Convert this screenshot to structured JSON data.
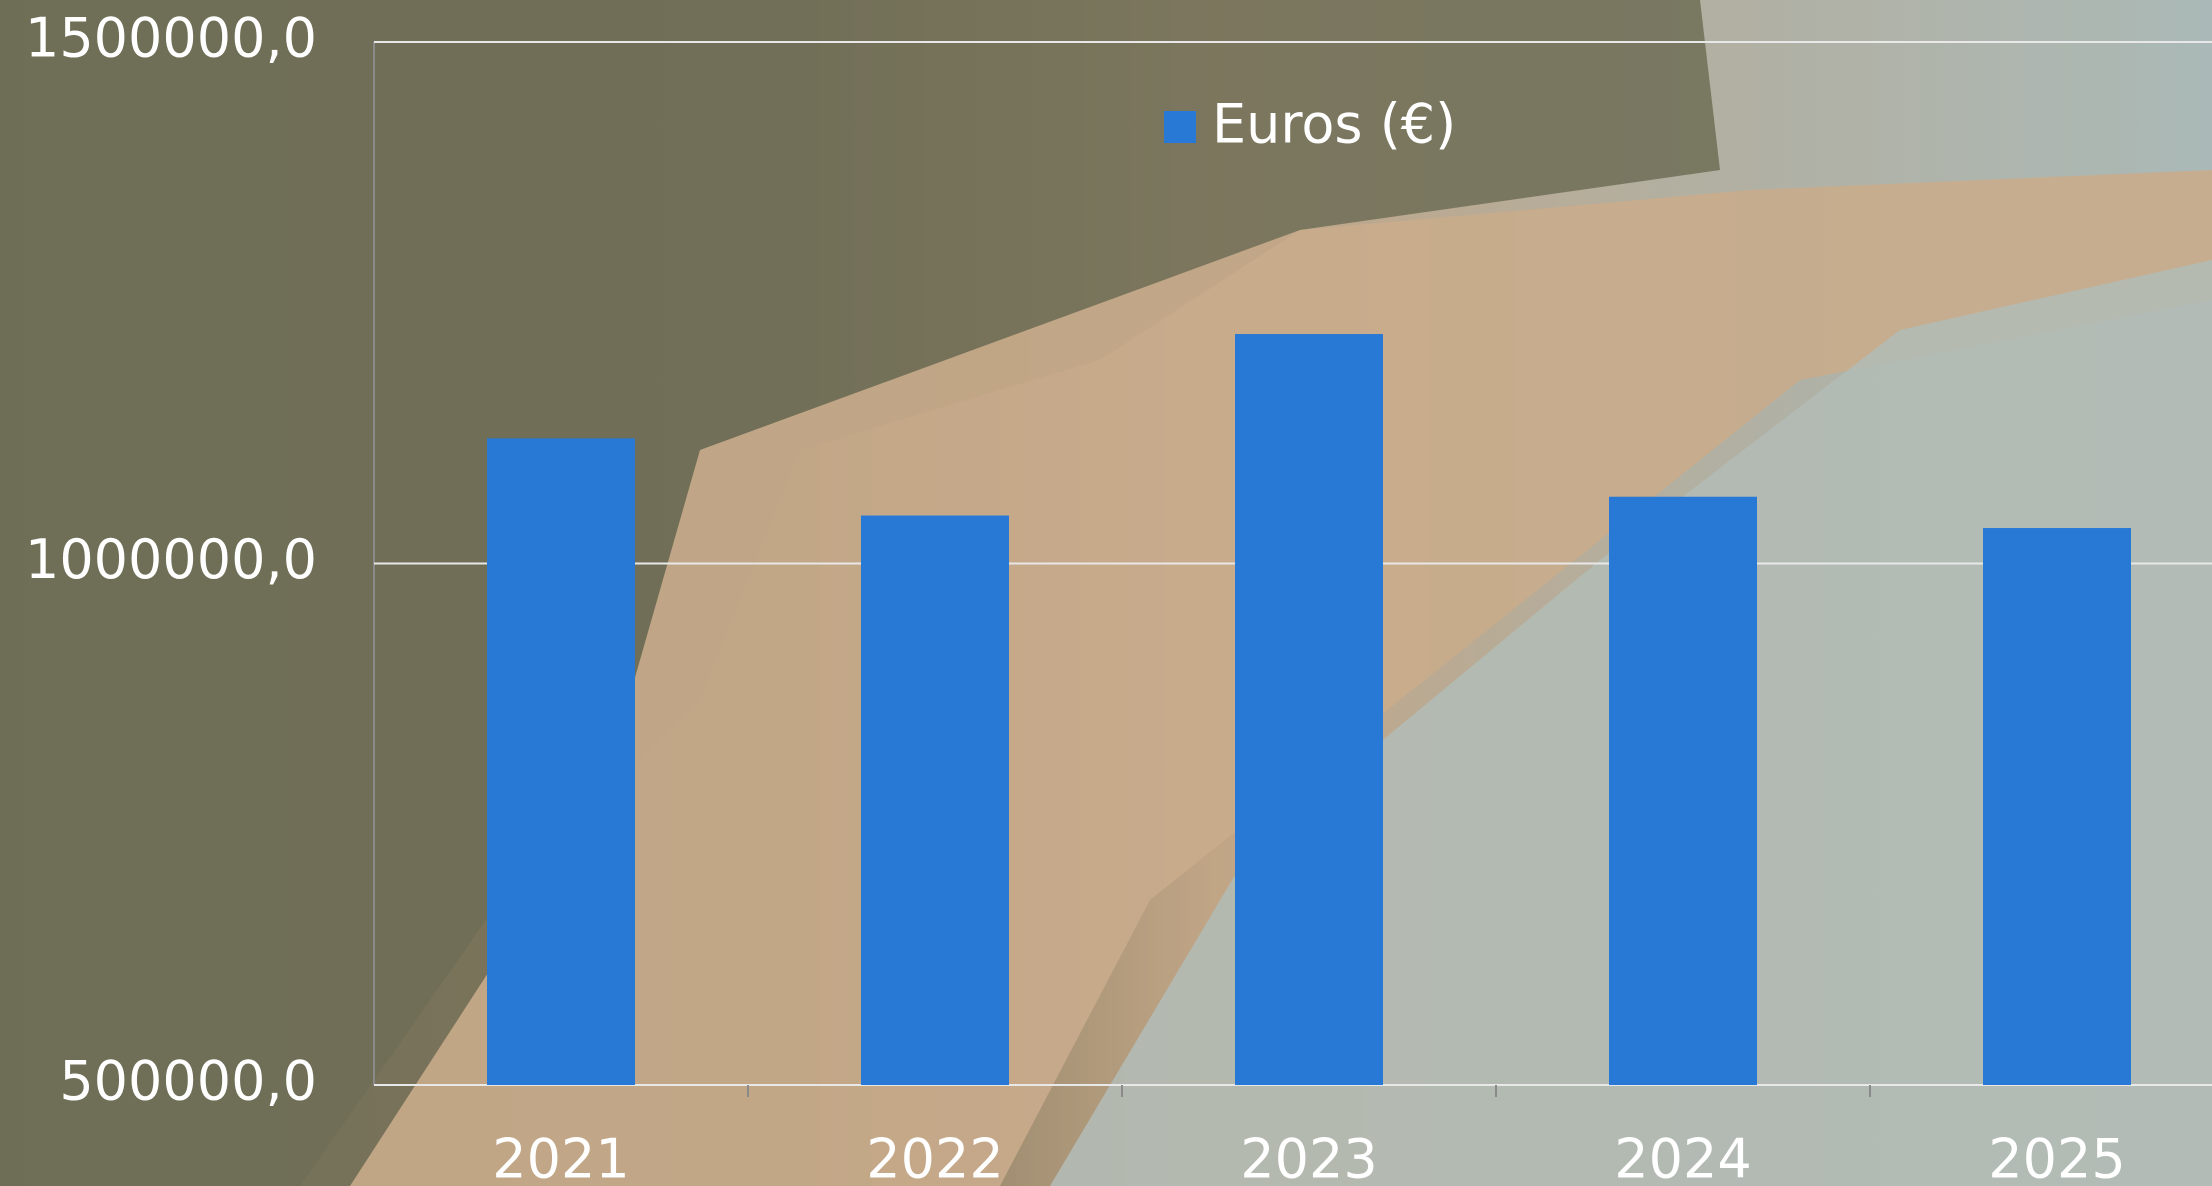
{
  "chart_data": {
    "type": "bar",
    "categories": [
      "2021",
      "2022",
      "2023",
      "2024",
      "2025"
    ],
    "series": [
      {
        "name": "Euros (€)",
        "color": "#2878d6",
        "values": [
          1120000,
          1046000,
          1220000,
          1064000,
          1034000
        ]
      }
    ],
    "ylim": [
      500000,
      1500000
    ],
    "yticks": [
      {
        "value": 500000,
        "label": "500000,0"
      },
      {
        "value": 1000000,
        "label": "1000000,0"
      },
      {
        "value": 1500000,
        "label": "1500000,0"
      }
    ],
    "grid": true,
    "legend": "top"
  }
}
